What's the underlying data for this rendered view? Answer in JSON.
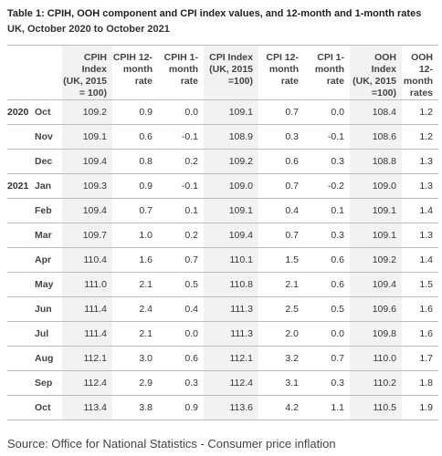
{
  "title": "Table 1: CPIH, OOH component and CPI index values, and 12-month and 1-month rates",
  "subtitle": "UK, October 2020 to October 2021",
  "headers": [
    "CPIH Index\n(UK, 2015\n= 100)",
    "CPIH 12-\nmonth\nrate",
    "CPIH 1-\nmonth\nrate",
    "CPI Index\n(UK, 2015\n=100)",
    "CPI 12-\nmonth\nrate",
    "CPI 1-\nmonth\nrate",
    "OOH Index\n(UK, 2015\n=100)",
    "OOH 12-\nmonth\nrates"
  ],
  "rows": [
    {
      "year": "2020",
      "month": "Oct",
      "values": [
        "109.2",
        "0.9",
        "0.0",
        "109.1",
        "0.7",
        "0.0",
        "108.4",
        "1.2"
      ]
    },
    {
      "year": "",
      "month": "Nov",
      "values": [
        "109.1",
        "0.6",
        "-0.1",
        "108.9",
        "0.3",
        "-0.1",
        "108.6",
        "1.2"
      ]
    },
    {
      "year": "",
      "month": "Dec",
      "values": [
        "109.4",
        "0.8",
        "0.2",
        "109.2",
        "0.6",
        "0.3",
        "108.8",
        "1.3"
      ]
    },
    {
      "year": "2021",
      "month": "Jan",
      "values": [
        "109.3",
        "0.9",
        "-0.1",
        "109.0",
        "0.7",
        "-0.2",
        "109.0",
        "1.3"
      ]
    },
    {
      "year": "",
      "month": "Feb",
      "values": [
        "109.4",
        "0.7",
        "0.1",
        "109.1",
        "0.4",
        "0.1",
        "109.1",
        "1.4"
      ]
    },
    {
      "year": "",
      "month": "Mar",
      "values": [
        "109.7",
        "1.0",
        "0.2",
        "109.4",
        "0.7",
        "0.3",
        "109.1",
        "1.3"
      ]
    },
    {
      "year": "",
      "month": "Apr",
      "values": [
        "110.4",
        "1.6",
        "0.7",
        "110.1",
        "1.5",
        "0.6",
        "109.2",
        "1.4"
      ]
    },
    {
      "year": "",
      "month": "May",
      "values": [
        "111.0",
        "2.1",
        "0.5",
        "110.8",
        "2.1",
        "0.6",
        "109.4",
        "1.5"
      ]
    },
    {
      "year": "",
      "month": "Jun",
      "values": [
        "111.4",
        "2.4",
        "0.4",
        "111.3",
        "2.5",
        "0.5",
        "109.6",
        "1.6"
      ]
    },
    {
      "year": "",
      "month": "Jul",
      "values": [
        "111.4",
        "2.1",
        "0.0",
        "111.3",
        "2.0",
        "0.0",
        "109.8",
        "1.6"
      ]
    },
    {
      "year": "",
      "month": "Aug",
      "values": [
        "112.1",
        "3.0",
        "0.6",
        "112.1",
        "3.2",
        "0.7",
        "110.0",
        "1.7"
      ]
    },
    {
      "year": "",
      "month": "Sep",
      "values": [
        "112.4",
        "2.9",
        "0.3",
        "112.4",
        "3.1",
        "0.3",
        "110.2",
        "1.8"
      ]
    },
    {
      "year": "",
      "month": "Oct",
      "values": [
        "113.4",
        "3.8",
        "0.9",
        "113.6",
        "4.2",
        "1.1",
        "110.5",
        "1.9"
      ]
    }
  ],
  "source": "Source: Office for National Statistics - Consumer price inflation"
}
